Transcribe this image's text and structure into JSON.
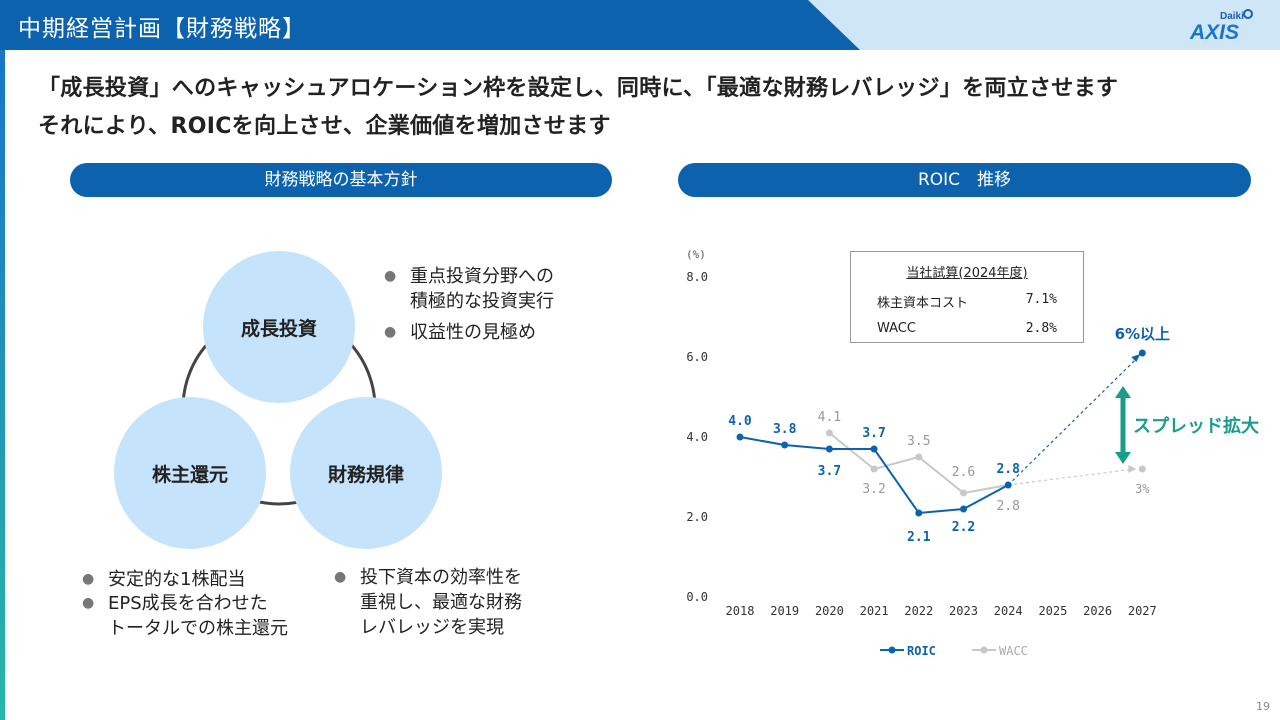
{
  "header": {
    "title": "中期経営計画【財務戦略】",
    "logo_top": "Daiki",
    "logo_main": "AXIS"
  },
  "lead": {
    "line1": "「成長投資」へのキャッシュアロケーション枠を設定し、同時に、「最適な財務レバレッジ」を両立させます",
    "line2": "それにより、ROICを向上させ、企業価値を増加させます"
  },
  "left_panel": {
    "title": "財務戦略の基本方針",
    "circles": {
      "growth": "成長投資",
      "shareholder": "株主還元",
      "discipline": "財務規律"
    },
    "bullets_growth": [
      "重点投資分野への",
      "積極的な投資実行",
      "収益性の見極め"
    ],
    "bullets_shareholder": [
      "安定的な1株配当",
      "EPS成長を合わせた",
      "トータルでの株主還元"
    ],
    "bullets_discipline": [
      "投下資本の効率性を",
      "重視し、最適な財務",
      "レバレッジを実現"
    ]
  },
  "right_panel": {
    "title": "ROIC　推移"
  },
  "estimate_box": {
    "title": "当社試算(2024年度)",
    "rows": [
      {
        "label": "株主資本コスト",
        "value": "7.1%"
      },
      {
        "label": "WACC",
        "value": "2.8%"
      }
    ]
  },
  "annotations": {
    "target": "6%以上",
    "spread": "スプレッド拡大",
    "wacc_target": "3%"
  },
  "colors": {
    "header": "#0d62ae",
    "roic": "#0d62ae",
    "wacc": "#c8c8c8",
    "arrow": "#1a9c8c"
  },
  "chart_data": {
    "type": "line",
    "unit_label": "(%)",
    "x": [
      "2018",
      "2019",
      "2020",
      "2021",
      "2022",
      "2023",
      "2024",
      "2025",
      "2026",
      "2027"
    ],
    "ylim": [
      0,
      8
    ],
    "yticks": [
      "0.0",
      "2.0",
      "4.0",
      "6.0",
      "8.0"
    ],
    "grid": false,
    "legend_position": "bottom",
    "series": [
      {
        "name": "ROIC",
        "values": [
          4.0,
          3.8,
          3.7,
          3.7,
          2.1,
          2.2,
          2.8,
          null,
          null,
          6.1
        ],
        "labels": [
          "4.0",
          "3.8",
          "3.7",
          "3.7",
          "2.1",
          "2.2",
          "2.8",
          "",
          "",
          ""
        ]
      },
      {
        "name": "WACC",
        "values": [
          null,
          null,
          4.1,
          3.2,
          3.5,
          2.6,
          2.8,
          null,
          null,
          3.2
        ],
        "labels": [
          "",
          "",
          "4.1",
          "3.2",
          "3.5",
          "2.6",
          "2.8",
          "",
          "",
          ""
        ]
      }
    ]
  },
  "page_number": "19"
}
